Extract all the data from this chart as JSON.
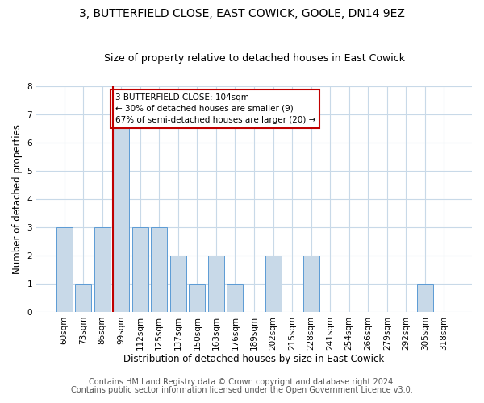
{
  "title": "3, BUTTERFIELD CLOSE, EAST COWICK, GOOLE, DN14 9EZ",
  "subtitle": "Size of property relative to detached houses in East Cowick",
  "xlabel": "Distribution of detached houses by size in East Cowick",
  "ylabel": "Number of detached properties",
  "categories": [
    "60sqm",
    "73sqm",
    "86sqm",
    "99sqm",
    "112sqm",
    "125sqm",
    "137sqm",
    "150sqm",
    "163sqm",
    "176sqm",
    "189sqm",
    "202sqm",
    "215sqm",
    "228sqm",
    "241sqm",
    "254sqm",
    "266sqm",
    "279sqm",
    "292sqm",
    "305sqm",
    "318sqm"
  ],
  "values": [
    3,
    1,
    3,
    7,
    3,
    3,
    2,
    1,
    2,
    1,
    0,
    2,
    0,
    2,
    0,
    0,
    0,
    0,
    0,
    1,
    0
  ],
  "bar_color": "#c8d9e8",
  "bar_edge_color": "#5b9bd5",
  "highlight_index": 3,
  "highlight_line_color": "#c00000",
  "ylim": [
    0,
    8
  ],
  "yticks": [
    0,
    1,
    2,
    3,
    4,
    5,
    6,
    7,
    8
  ],
  "annotation_text": "3 BUTTERFIELD CLOSE: 104sqm\n← 30% of detached houses are smaller (9)\n67% of semi-detached houses are larger (20) →",
  "annotation_box_color": "#ffffff",
  "annotation_box_edge": "#c00000",
  "footnote1": "Contains HM Land Registry data © Crown copyright and database right 2024.",
  "footnote2": "Contains public sector information licensed under the Open Government Licence v3.0.",
  "background_color": "#ffffff",
  "grid_color": "#c8d9e8",
  "title_fontsize": 10,
  "subtitle_fontsize": 9,
  "axis_label_fontsize": 8.5,
  "tick_fontsize": 7.5,
  "annotation_fontsize": 7.5,
  "footnote_fontsize": 7
}
